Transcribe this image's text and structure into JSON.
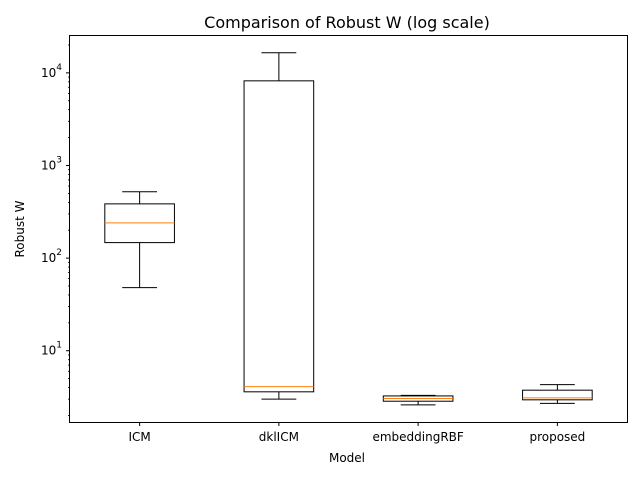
{
  "chart_data": {
    "type": "box",
    "title": "Comparison of Robust W (log scale)",
    "xlabel": "Model",
    "ylabel": "Robust W",
    "yscale": "log",
    "ylim": [
      1.7,
      25000
    ],
    "y_ticks": [
      {
        "value": 10,
        "base": "10",
        "exp": "1"
      },
      {
        "value": 100,
        "base": "10",
        "exp": "2"
      },
      {
        "value": 1000,
        "base": "10",
        "exp": "3"
      },
      {
        "value": 10000,
        "base": "10",
        "exp": "4"
      }
    ],
    "categories": [
      "ICM",
      "dklICM",
      "embeddingRBF",
      "proposed"
    ],
    "boxes": [
      {
        "name": "ICM",
        "whisker_low": 48,
        "q1": 147,
        "median": 240,
        "q3": 385,
        "whisker_high": 520
      },
      {
        "name": "dklICM",
        "whisker_low": 3.0,
        "q1": 3.6,
        "median": 4.1,
        "q3": 8200,
        "whisker_high": 16500
      },
      {
        "name": "embeddingRBF",
        "whisker_low": 2.6,
        "q1": 2.85,
        "median": 3.05,
        "q3": 3.25,
        "whisker_high": 3.3
      },
      {
        "name": "proposed",
        "whisker_low": 2.7,
        "q1": 2.95,
        "median": 3.1,
        "q3": 3.75,
        "whisker_high": 4.3
      }
    ],
    "grid": false,
    "colors": {
      "box": "#000000",
      "median": "#ff7f0e",
      "axes": "#000000"
    }
  }
}
